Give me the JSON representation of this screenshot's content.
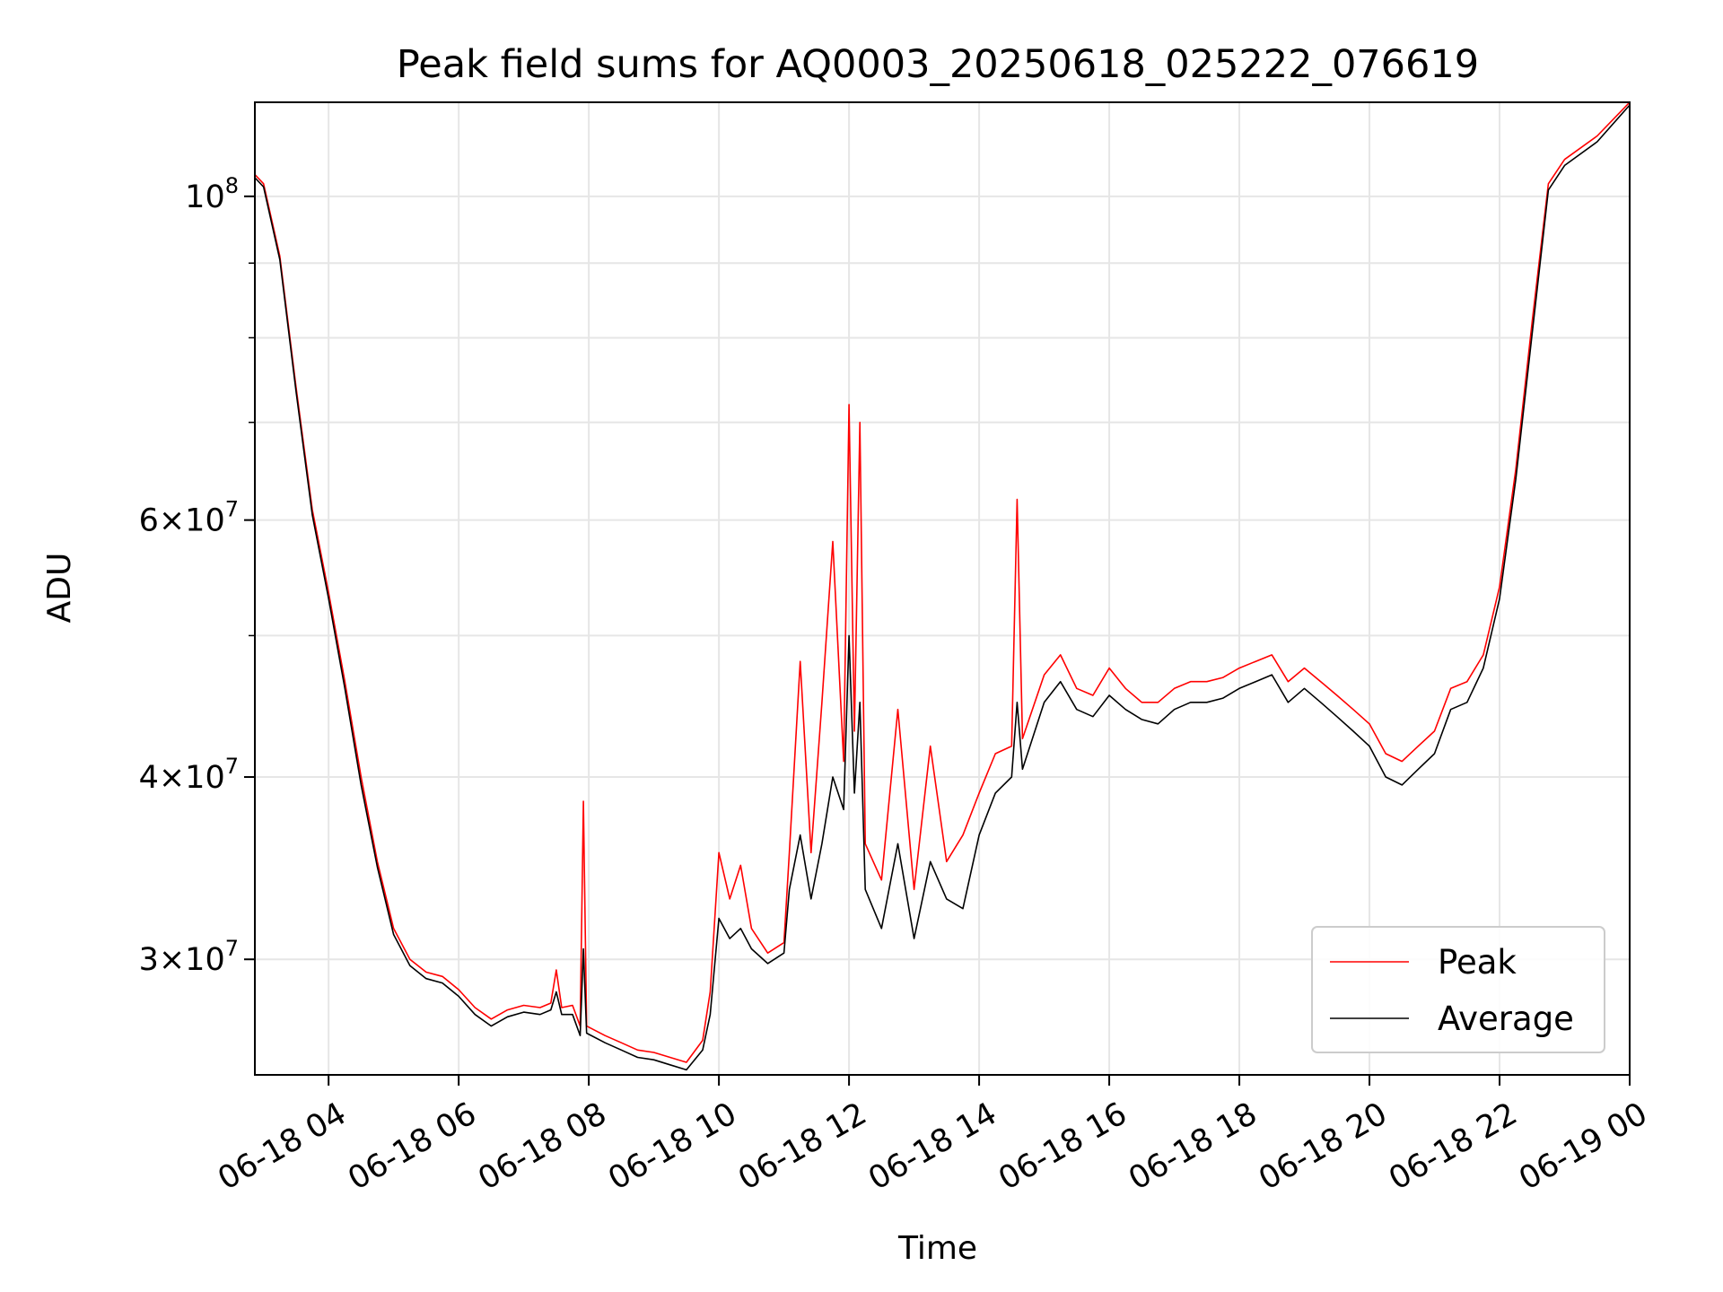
{
  "chart_data": {
    "type": "line",
    "title": "Peak field sums for AQ0003_20250618_025222_076619",
    "xlabel": "Time",
    "ylabel": "ADU",
    "x_range": [
      "2025-06-18 02:52",
      "2025-06-19 00:00"
    ],
    "y_scale": "log",
    "ylim": [
      25000000,
      116000000
    ],
    "grid": true,
    "legend_position": "lower-right",
    "x_ticks": [
      {
        "t": "2025-06-18 04:00",
        "label": "06-18 04"
      },
      {
        "t": "2025-06-18 06:00",
        "label": "06-18 06"
      },
      {
        "t": "2025-06-18 08:00",
        "label": "06-18 08"
      },
      {
        "t": "2025-06-18 10:00",
        "label": "06-18 10"
      },
      {
        "t": "2025-06-18 12:00",
        "label": "06-18 12"
      },
      {
        "t": "2025-06-18 14:00",
        "label": "06-18 14"
      },
      {
        "t": "2025-06-18 16:00",
        "label": "06-18 16"
      },
      {
        "t": "2025-06-18 18:00",
        "label": "06-18 18"
      },
      {
        "t": "2025-06-18 20:00",
        "label": "06-18 20"
      },
      {
        "t": "2025-06-18 22:00",
        "label": "06-18 22"
      },
      {
        "t": "2025-06-19 00:00",
        "label": "06-19 00"
      }
    ],
    "y_major_ticks": [
      {
        "value": 30000000,
        "mantissa": "3",
        "base": "10",
        "exp": "7"
      },
      {
        "value": 40000000,
        "mantissa": "4",
        "base": "10",
        "exp": "7"
      },
      {
        "value": 60000000,
        "mantissa": "6",
        "base": "10",
        "exp": "7"
      },
      {
        "value": 100000000,
        "mantissa": "",
        "base": "10",
        "exp": "8"
      }
    ],
    "y_minor_gridlines": [
      50000000,
      70000000,
      80000000,
      90000000
    ],
    "series": [
      {
        "name": "Peak",
        "color": "#ff0000",
        "points": [
          [
            "2025-06-18 02:52",
            103500000
          ],
          [
            "2025-06-18 03:00",
            102000000
          ],
          [
            "2025-06-18 03:15",
            91000000
          ],
          [
            "2025-06-18 03:30",
            74000000
          ],
          [
            "2025-06-18 03:45",
            61000000
          ],
          [
            "2025-06-18 04:00",
            53500000
          ],
          [
            "2025-06-18 04:15",
            46500000
          ],
          [
            "2025-06-18 04:30",
            40000000
          ],
          [
            "2025-06-18 04:45",
            35000000
          ],
          [
            "2025-06-18 05:00",
            31500000
          ],
          [
            "2025-06-18 05:15",
            30000000
          ],
          [
            "2025-06-18 05:30",
            29400000
          ],
          [
            "2025-06-18 05:45",
            29200000
          ],
          [
            "2025-06-18 06:00",
            28600000
          ],
          [
            "2025-06-18 06:15",
            27800000
          ],
          [
            "2025-06-18 06:30",
            27300000
          ],
          [
            "2025-06-18 06:45",
            27700000
          ],
          [
            "2025-06-18 07:00",
            27900000
          ],
          [
            "2025-06-18 07:15",
            27800000
          ],
          [
            "2025-06-18 07:25",
            28000000
          ],
          [
            "2025-06-18 07:30",
            29500000
          ],
          [
            "2025-06-18 07:35",
            27800000
          ],
          [
            "2025-06-18 07:45",
            27900000
          ],
          [
            "2025-06-18 07:52",
            27000000
          ],
          [
            "2025-06-18 07:55",
            38500000
          ],
          [
            "2025-06-18 07:58",
            27000000
          ],
          [
            "2025-06-18 08:15",
            26600000
          ],
          [
            "2025-06-18 08:30",
            26300000
          ],
          [
            "2025-06-18 08:45",
            26000000
          ],
          [
            "2025-06-18 09:00",
            25900000
          ],
          [
            "2025-06-18 09:15",
            25700000
          ],
          [
            "2025-06-18 09:30",
            25500000
          ],
          [
            "2025-06-18 09:45",
            26400000
          ],
          [
            "2025-06-18 09:52",
            28500000
          ],
          [
            "2025-06-18 10:00",
            35500000
          ],
          [
            "2025-06-18 10:10",
            33000000
          ],
          [
            "2025-06-18 10:20",
            34800000
          ],
          [
            "2025-06-18 10:30",
            31500000
          ],
          [
            "2025-06-18 10:45",
            30300000
          ],
          [
            "2025-06-18 11:00",
            30800000
          ],
          [
            "2025-06-18 11:05",
            35500000
          ],
          [
            "2025-06-18 11:15",
            48000000
          ],
          [
            "2025-06-18 11:25",
            35500000
          ],
          [
            "2025-06-18 11:35",
            45000000
          ],
          [
            "2025-06-18 11:45",
            58000000
          ],
          [
            "2025-06-18 11:55",
            41000000
          ],
          [
            "2025-06-18 12:00",
            72000000
          ],
          [
            "2025-06-18 12:05",
            43000000
          ],
          [
            "2025-06-18 12:10",
            70000000
          ],
          [
            "2025-06-18 12:15",
            36000000
          ],
          [
            "2025-06-18 12:30",
            34000000
          ],
          [
            "2025-06-18 12:45",
            44500000
          ],
          [
            "2025-06-18 13:00",
            33500000
          ],
          [
            "2025-06-18 13:15",
            42000000
          ],
          [
            "2025-06-18 13:30",
            35000000
          ],
          [
            "2025-06-18 13:45",
            36500000
          ],
          [
            "2025-06-18 14:00",
            39000000
          ],
          [
            "2025-06-18 14:15",
            41500000
          ],
          [
            "2025-06-18 14:30",
            42000000
          ],
          [
            "2025-06-18 14:35",
            62000000
          ],
          [
            "2025-06-18 14:40",
            42500000
          ],
          [
            "2025-06-18 15:00",
            47000000
          ],
          [
            "2025-06-18 15:15",
            48500000
          ],
          [
            "2025-06-18 15:30",
            46000000
          ],
          [
            "2025-06-18 15:45",
            45500000
          ],
          [
            "2025-06-18 16:00",
            47500000
          ],
          [
            "2025-06-18 16:15",
            46000000
          ],
          [
            "2025-06-18 16:30",
            45000000
          ],
          [
            "2025-06-18 16:45",
            45000000
          ],
          [
            "2025-06-18 17:00",
            46000000
          ],
          [
            "2025-06-18 17:15",
            46500000
          ],
          [
            "2025-06-18 17:30",
            46500000
          ],
          [
            "2025-06-18 17:45",
            46800000
          ],
          [
            "2025-06-18 18:00",
            47500000
          ],
          [
            "2025-06-18 18:15",
            48000000
          ],
          [
            "2025-06-18 18:30",
            48500000
          ],
          [
            "2025-06-18 18:45",
            46500000
          ],
          [
            "2025-06-18 19:00",
            47500000
          ],
          [
            "2025-06-18 19:15",
            46500000
          ],
          [
            "2025-06-18 19:30",
            45500000
          ],
          [
            "2025-06-18 19:45",
            44500000
          ],
          [
            "2025-06-18 20:00",
            43500000
          ],
          [
            "2025-06-18 20:15",
            41500000
          ],
          [
            "2025-06-18 20:30",
            41000000
          ],
          [
            "2025-06-18 20:45",
            42000000
          ],
          [
            "2025-06-18 21:00",
            43000000
          ],
          [
            "2025-06-18 21:15",
            46000000
          ],
          [
            "2025-06-18 21:30",
            46500000
          ],
          [
            "2025-06-18 21:45",
            48500000
          ],
          [
            "2025-06-18 22:00",
            54000000
          ],
          [
            "2025-06-18 22:15",
            65000000
          ],
          [
            "2025-06-18 22:30",
            82000000
          ],
          [
            "2025-06-18 22:45",
            102000000
          ],
          [
            "2025-06-18 23:00",
            106000000
          ],
          [
            "2025-06-18 23:30",
            110000000
          ],
          [
            "2025-06-19 00:00",
            116000000
          ]
        ]
      },
      {
        "name": "Average",
        "color": "#000000",
        "points": [
          [
            "2025-06-18 02:52",
            103000000
          ],
          [
            "2025-06-18 03:00",
            101500000
          ],
          [
            "2025-06-18 03:15",
            90500000
          ],
          [
            "2025-06-18 03:30",
            73500000
          ],
          [
            "2025-06-18 03:45",
            60500000
          ],
          [
            "2025-06-18 04:00",
            53000000
          ],
          [
            "2025-06-18 04:15",
            46000000
          ],
          [
            "2025-06-18 04:30",
            39500000
          ],
          [
            "2025-06-18 04:45",
            34700000
          ],
          [
            "2025-06-18 05:00",
            31200000
          ],
          [
            "2025-06-18 05:15",
            29700000
          ],
          [
            "2025-06-18 05:30",
            29100000
          ],
          [
            "2025-06-18 05:45",
            28900000
          ],
          [
            "2025-06-18 06:00",
            28300000
          ],
          [
            "2025-06-18 06:15",
            27500000
          ],
          [
            "2025-06-18 06:30",
            27000000
          ],
          [
            "2025-06-18 06:45",
            27400000
          ],
          [
            "2025-06-18 07:00",
            27600000
          ],
          [
            "2025-06-18 07:15",
            27500000
          ],
          [
            "2025-06-18 07:25",
            27700000
          ],
          [
            "2025-06-18 07:30",
            28500000
          ],
          [
            "2025-06-18 07:35",
            27500000
          ],
          [
            "2025-06-18 07:45",
            27500000
          ],
          [
            "2025-06-18 07:52",
            26600000
          ],
          [
            "2025-06-18 07:55",
            30500000
          ],
          [
            "2025-06-18 07:58",
            26700000
          ],
          [
            "2025-06-18 08:15",
            26300000
          ],
          [
            "2025-06-18 08:30",
            26000000
          ],
          [
            "2025-06-18 08:45",
            25700000
          ],
          [
            "2025-06-18 09:00",
            25600000
          ],
          [
            "2025-06-18 09:15",
            25400000
          ],
          [
            "2025-06-18 09:30",
            25200000
          ],
          [
            "2025-06-18 09:45",
            26000000
          ],
          [
            "2025-06-18 09:52",
            27500000
          ],
          [
            "2025-06-18 10:00",
            32000000
          ],
          [
            "2025-06-18 10:10",
            31000000
          ],
          [
            "2025-06-18 10:20",
            31500000
          ],
          [
            "2025-06-18 10:30",
            30500000
          ],
          [
            "2025-06-18 10:45",
            29800000
          ],
          [
            "2025-06-18 11:00",
            30300000
          ],
          [
            "2025-06-18 11:05",
            33500000
          ],
          [
            "2025-06-18 11:15",
            36500000
          ],
          [
            "2025-06-18 11:25",
            33000000
          ],
          [
            "2025-06-18 11:35",
            36000000
          ],
          [
            "2025-06-18 11:45",
            40000000
          ],
          [
            "2025-06-18 11:55",
            38000000
          ],
          [
            "2025-06-18 12:00",
            50000000
          ],
          [
            "2025-06-18 12:05",
            39000000
          ],
          [
            "2025-06-18 12:10",
            45000000
          ],
          [
            "2025-06-18 12:15",
            33500000
          ],
          [
            "2025-06-18 12:30",
            31500000
          ],
          [
            "2025-06-18 12:45",
            36000000
          ],
          [
            "2025-06-18 13:00",
            31000000
          ],
          [
            "2025-06-18 13:15",
            35000000
          ],
          [
            "2025-06-18 13:30",
            33000000
          ],
          [
            "2025-06-18 13:45",
            32500000
          ],
          [
            "2025-06-18 14:00",
            36500000
          ],
          [
            "2025-06-18 14:15",
            39000000
          ],
          [
            "2025-06-18 14:30",
            40000000
          ],
          [
            "2025-06-18 14:35",
            45000000
          ],
          [
            "2025-06-18 14:40",
            40500000
          ],
          [
            "2025-06-18 15:00",
            45000000
          ],
          [
            "2025-06-18 15:15",
            46500000
          ],
          [
            "2025-06-18 15:30",
            44500000
          ],
          [
            "2025-06-18 15:45",
            44000000
          ],
          [
            "2025-06-18 16:00",
            45500000
          ],
          [
            "2025-06-18 16:15",
            44500000
          ],
          [
            "2025-06-18 16:30",
            43800000
          ],
          [
            "2025-06-18 16:45",
            43500000
          ],
          [
            "2025-06-18 17:00",
            44500000
          ],
          [
            "2025-06-18 17:15",
            45000000
          ],
          [
            "2025-06-18 17:30",
            45000000
          ],
          [
            "2025-06-18 17:45",
            45300000
          ],
          [
            "2025-06-18 18:00",
            46000000
          ],
          [
            "2025-06-18 18:15",
            46500000
          ],
          [
            "2025-06-18 18:30",
            47000000
          ],
          [
            "2025-06-18 18:45",
            45000000
          ],
          [
            "2025-06-18 19:00",
            46000000
          ],
          [
            "2025-06-18 19:15",
            45000000
          ],
          [
            "2025-06-18 19:30",
            44000000
          ],
          [
            "2025-06-18 19:45",
            43000000
          ],
          [
            "2025-06-18 20:00",
            42000000
          ],
          [
            "2025-06-18 20:15",
            40000000
          ],
          [
            "2025-06-18 20:30",
            39500000
          ],
          [
            "2025-06-18 20:45",
            40500000
          ],
          [
            "2025-06-18 21:00",
            41500000
          ],
          [
            "2025-06-18 21:15",
            44500000
          ],
          [
            "2025-06-18 21:30",
            45000000
          ],
          [
            "2025-06-18 21:45",
            47500000
          ],
          [
            "2025-06-18 22:00",
            53000000
          ],
          [
            "2025-06-18 22:15",
            64000000
          ],
          [
            "2025-06-18 22:30",
            80500000
          ],
          [
            "2025-06-18 22:45",
            101000000
          ],
          [
            "2025-06-18 23:00",
            105000000
          ],
          [
            "2025-06-18 23:30",
            109000000
          ],
          [
            "2025-06-19 00:00",
            115500000
          ]
        ]
      }
    ]
  }
}
